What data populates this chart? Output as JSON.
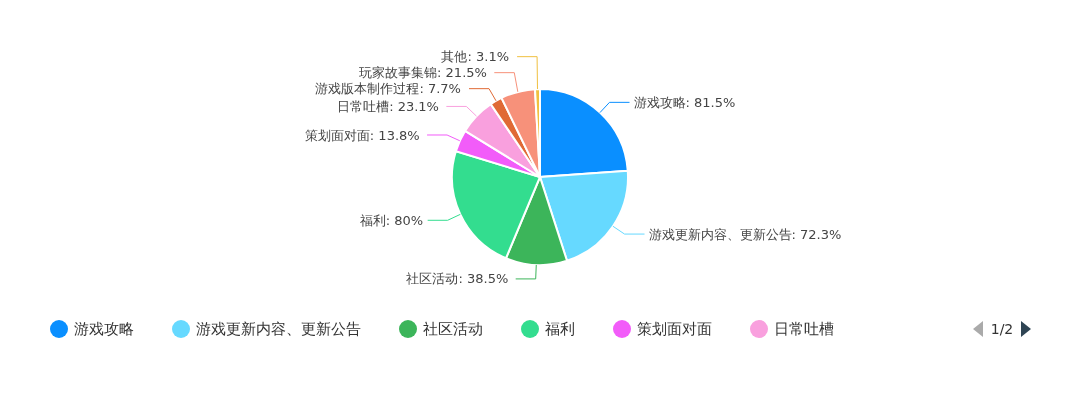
{
  "chart_data": {
    "type": "pie",
    "categories": [
      "游戏攻略",
      "游戏更新内容、更新公告",
      "社区活动",
      "福利",
      "策划面对面",
      "日常吐槽",
      "游戏版本制作过程",
      "玩家故事集锦",
      "其他"
    ],
    "values": [
      81.5,
      72.3,
      38.5,
      80,
      13.8,
      23.1,
      7.7,
      21.5,
      3.1
    ],
    "colors": [
      "#0a8fff",
      "#66d9ff",
      "#3cb55a",
      "#33dd8f",
      "#f25cf9",
      "#f9a0de",
      "#e06a35",
      "#f7917a",
      "#f0c040"
    ],
    "value_labels": [
      ": 81.5%",
      ": 72.3%",
      ": 38.5%",
      ": 80%",
      ": 13.8%",
      ": 23.1%",
      ": 7.7%",
      ": 21.5%",
      ": 3.1%"
    ],
    "legend": "bottom",
    "annotations": [
      "1/2"
    ]
  }
}
